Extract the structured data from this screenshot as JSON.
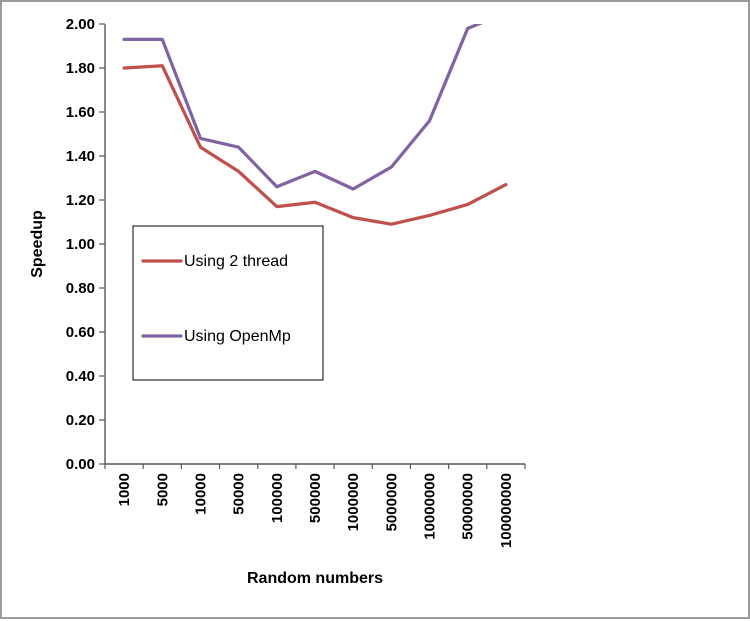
{
  "chart_data": {
    "type": "line",
    "title": "",
    "xlabel": "Random numbers",
    "ylabel": "Speedup",
    "ylim": [
      0.0,
      2.0
    ],
    "ytick_step": 0.2,
    "ytick_labels": [
      "0.00",
      "0.20",
      "0.40",
      "0.60",
      "0.80",
      "1.00",
      "1.20",
      "1.40",
      "1.60",
      "1.80",
      "2.00"
    ],
    "categories": [
      "1000",
      "5000",
      "10000",
      "50000",
      "100000",
      "500000",
      "1000000",
      "5000000",
      "10000000",
      "50000000",
      "100000000"
    ],
    "series": [
      {
        "name": "Using 2 thread",
        "color": "#C0504D",
        "values": [
          1.8,
          1.81,
          1.44,
          1.33,
          1.17,
          1.19,
          1.12,
          1.09,
          1.13,
          1.18,
          1.27
        ]
      },
      {
        "name": "Using OpenMp",
        "color": "#8064A2",
        "values": [
          1.93,
          1.93,
          1.48,
          1.44,
          1.26,
          1.33,
          1.25,
          1.35,
          1.56,
          1.98,
          2.05
        ]
      }
    ],
    "legend_position": "inside-left",
    "grid": false,
    "axis_color": "#595959"
  }
}
